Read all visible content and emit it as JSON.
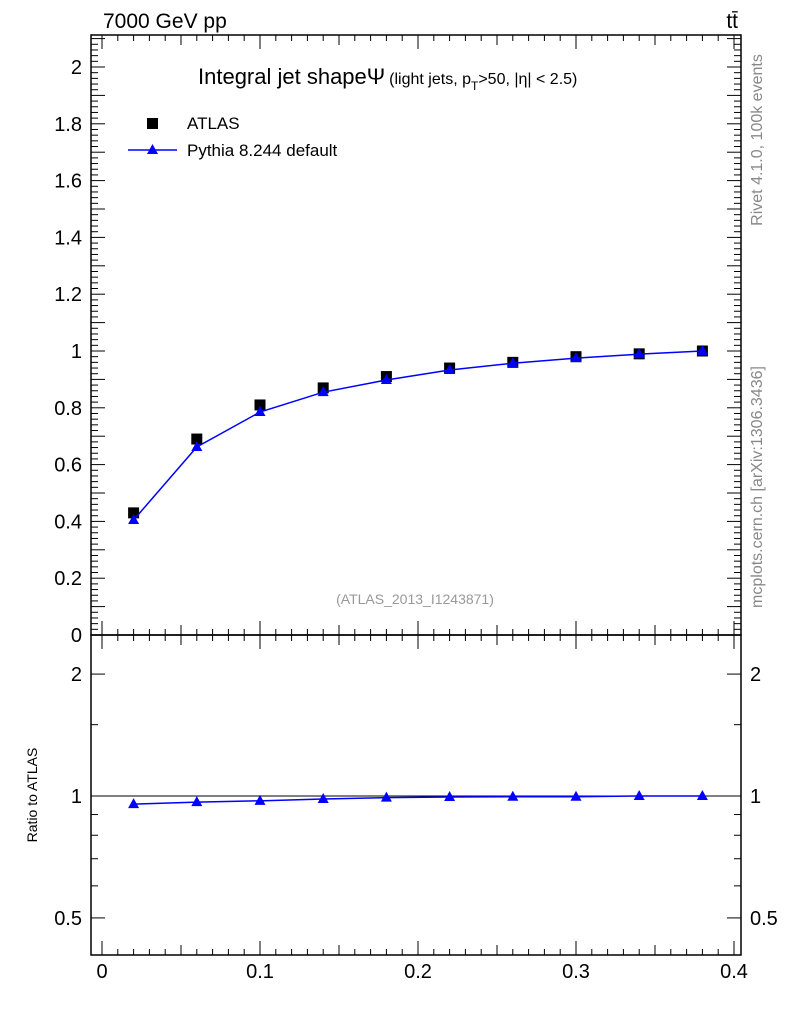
{
  "header": {
    "energy": "7000 GeV pp",
    "process": "tt̄"
  },
  "side": {
    "rivet": "Rivet 4.1.0,  100k events",
    "mcplots": "mcplots.cern.ch [arXiv:1306.3436]"
  },
  "chart_data": {
    "type": "line",
    "title": "Integral jet shapeΨ",
    "subtitle": "(light jets, p_T>50, |η| < 2.5)",
    "analysis": "(ATLAS_2013_I1243871)",
    "xlabel": "",
    "ylabel": "",
    "xlim": [
      0,
      0.4
    ],
    "ylim": [
      0,
      2.1
    ],
    "x_ticks": [
      "0",
      "0.1",
      "0.2",
      "0.3",
      "0.4"
    ],
    "y_ticks": [
      "0",
      "0.2",
      "0.4",
      "0.6",
      "0.8",
      "1",
      "1.2",
      "1.4",
      "1.6",
      "1.8",
      "2"
    ],
    "legend_position": "top-left",
    "x": [
      0.02,
      0.06,
      0.1,
      0.14,
      0.18,
      0.22,
      0.26,
      0.3,
      0.34,
      0.38
    ],
    "series": [
      {
        "name": "ATLAS",
        "marker": "square",
        "color": "#000000",
        "values": [
          0.43,
          0.69,
          0.81,
          0.87,
          0.91,
          0.94,
          0.96,
          0.98,
          0.99,
          1.0
        ]
      },
      {
        "name": "Pythia 8.244 default",
        "marker": "triangle",
        "color": "#0000ff",
        "values": [
          0.405,
          0.662,
          0.785,
          0.855,
          0.898,
          0.933,
          0.957,
          0.975,
          0.989,
          1.0
        ]
      }
    ],
    "ratio": {
      "ylabel": "Ratio to ATLAS",
      "scale": "log",
      "y_ticks": [
        "0.5",
        "1",
        "2"
      ],
      "values": [
        0.955,
        0.966,
        0.973,
        0.983,
        0.991,
        0.994,
        0.996,
        0.996,
        1.0,
        1.0
      ]
    }
  }
}
